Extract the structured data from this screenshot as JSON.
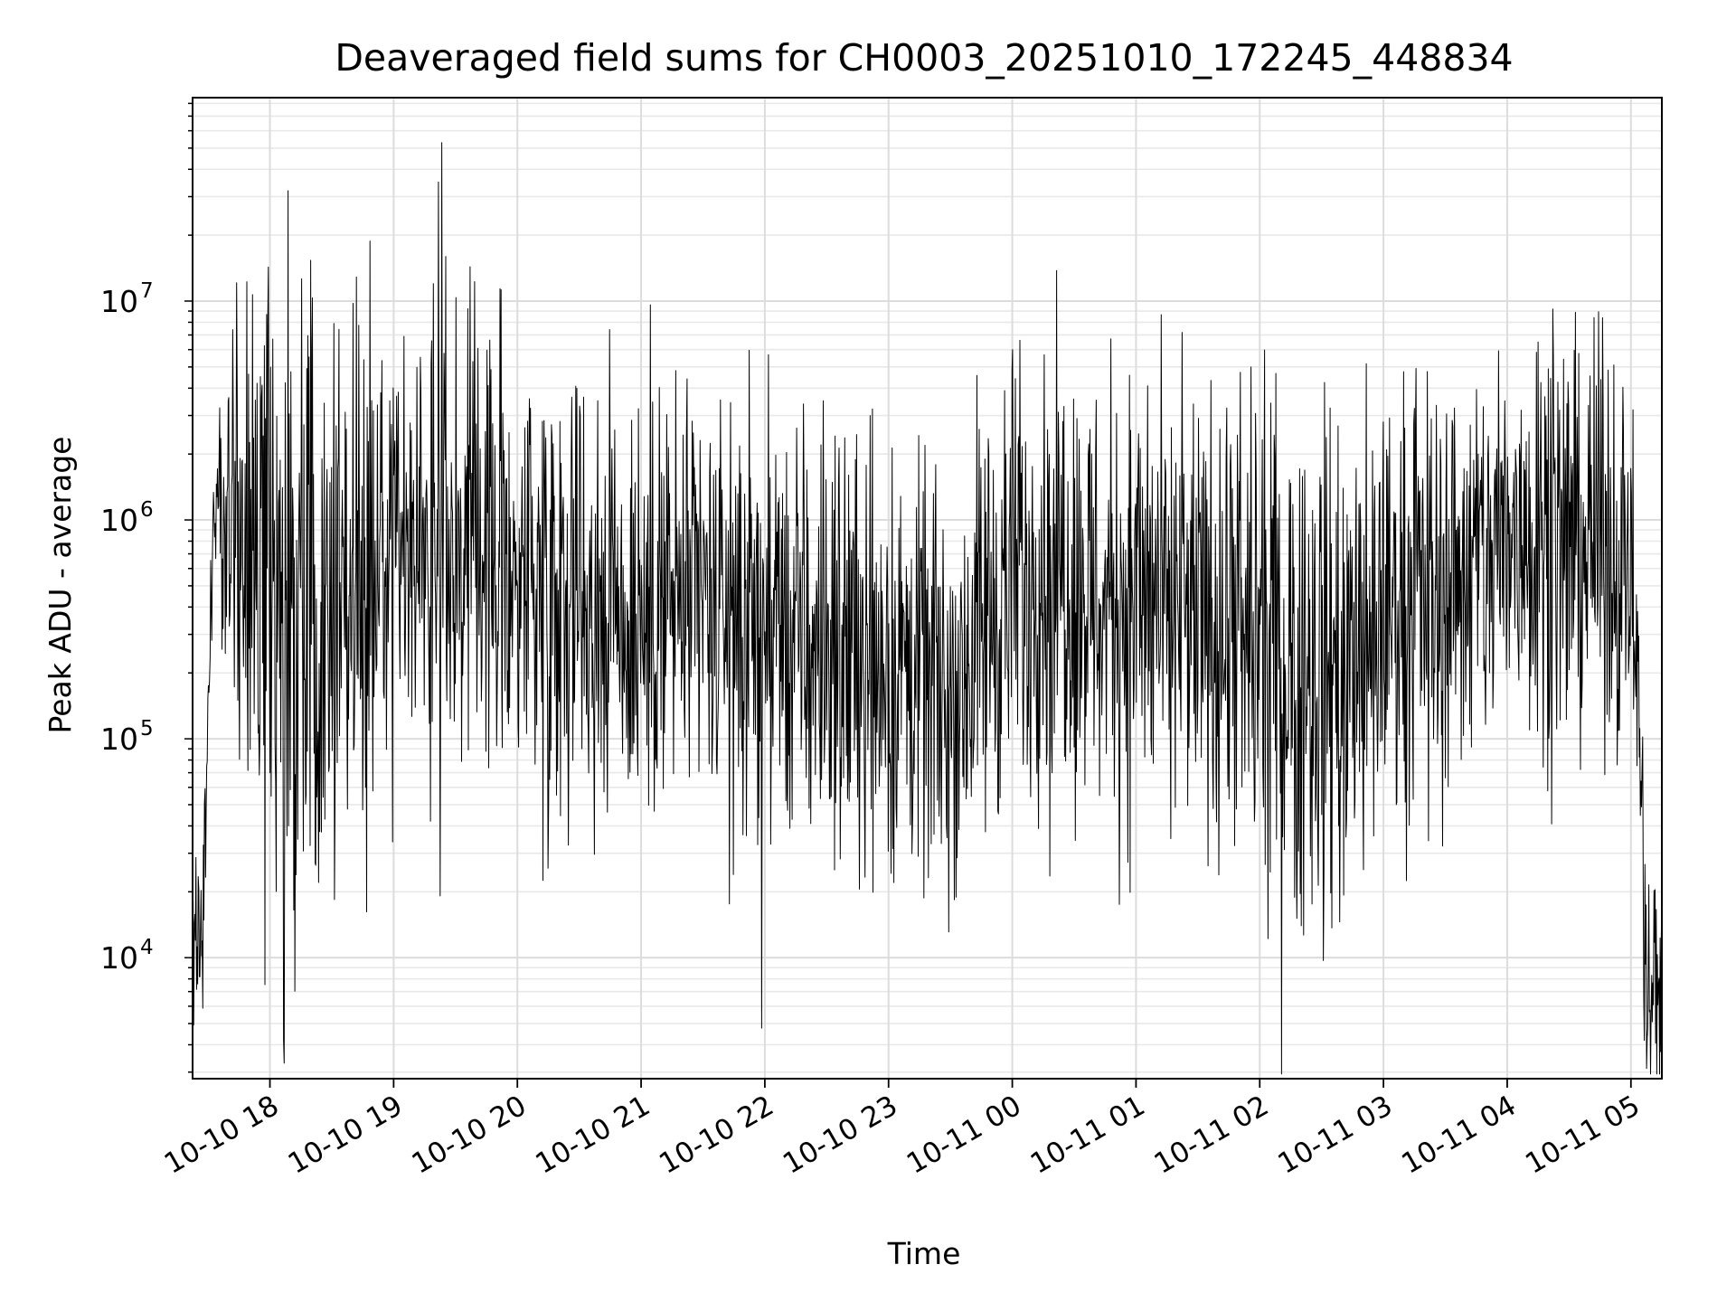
{
  "chart_data": {
    "type": "line",
    "title": "Deaveraged field sums for CH0003_20251010_172245_448834",
    "xlabel": "Time",
    "ylabel": "Peak ADU - average",
    "yscale": "log",
    "ylim": [
      2800,
      85000000
    ],
    "xlim_hours": [
      17.375,
      29.25
    ],
    "grid": true,
    "line_color": "#000000",
    "x_ticks": [
      {
        "hour": 18,
        "label": "10-10 18"
      },
      {
        "hour": 19,
        "label": "10-10 19"
      },
      {
        "hour": 20,
        "label": "10-10 20"
      },
      {
        "hour": 21,
        "label": "10-10 21"
      },
      {
        "hour": 22,
        "label": "10-10 22"
      },
      {
        "hour": 23,
        "label": "10-10 23"
      },
      {
        "hour": 24,
        "label": "10-11 00"
      },
      {
        "hour": 25,
        "label": "10-11 01"
      },
      {
        "hour": 26,
        "label": "10-11 02"
      },
      {
        "hour": 27,
        "label": "10-11 03"
      },
      {
        "hour": 28,
        "label": "10-11 04"
      },
      {
        "hour": 29,
        "label": "10-11 05"
      }
    ],
    "y_ticks": [
      {
        "exp": 4,
        "base": "10",
        "sup": "4"
      },
      {
        "exp": 5,
        "base": "10",
        "sup": "5"
      },
      {
        "exp": 6,
        "base": "10",
        "sup": "6"
      },
      {
        "exp": 7,
        "base": "10",
        "sup": "7"
      }
    ],
    "series": [
      {
        "name": "Peak ADU - average",
        "envelope": {
          "x": [
            17.375,
            17.42,
            17.45,
            17.5,
            17.55,
            17.6,
            17.75,
            18.0,
            18.2,
            18.5,
            18.8,
            19.1,
            19.3,
            19.5,
            20.0,
            20.5,
            21.0,
            21.5,
            22.0,
            22.5,
            22.8,
            23.0,
            23.3,
            23.5,
            23.7,
            24.0,
            24.3,
            24.6,
            25.0,
            25.3,
            25.6,
            26.0,
            26.3,
            26.6,
            26.9,
            27.0,
            27.3,
            27.6,
            28.0,
            28.3,
            28.6,
            28.9,
            29.0,
            29.05,
            29.1,
            29.15,
            29.25
          ],
          "center": [
            12000,
            10500,
            13000,
            120000,
            1300000,
            1300000,
            700000,
            400000,
            380000,
            600000,
            700000,
            800000,
            900000,
            800000,
            650000,
            500000,
            420000,
            400000,
            300000,
            280000,
            270000,
            220000,
            180000,
            180000,
            260000,
            550000,
            650000,
            500000,
            450000,
            380000,
            330000,
            270000,
            220000,
            220000,
            240000,
            400000,
            500000,
            560000,
            800000,
            1000000,
            800000,
            700000,
            750000,
            250000,
            20000,
            6000,
            11000
          ],
          "spread": [
            0.2,
            0.2,
            0.2,
            0.15,
            0.15,
            0.2,
            0.6,
            0.75,
            0.75,
            0.6,
            0.55,
            0.5,
            0.5,
            0.5,
            0.5,
            0.5,
            0.5,
            0.5,
            0.5,
            0.5,
            0.5,
            0.5,
            0.45,
            0.45,
            0.5,
            0.5,
            0.5,
            0.5,
            0.5,
            0.5,
            0.5,
            0.55,
            0.6,
            0.6,
            0.55,
            0.45,
            0.45,
            0.45,
            0.45,
            0.5,
            0.45,
            0.45,
            0.3,
            0.3,
            0.3,
            0.3,
            0.3
          ]
        },
        "spikes": [
          {
            "x": 18.97,
            "y": 3500000
          },
          {
            "x": 19.32,
            "y": 12000000
          },
          {
            "x": 19.36,
            "y": 35000000
          },
          {
            "x": 19.39,
            "y": 53000000
          },
          {
            "x": 19.42,
            "y": 16000000
          },
          {
            "x": 22.85,
            "y": 3000000
          },
          {
            "x": 23.78,
            "y": 1900000
          },
          {
            "x": 24.42,
            "y": 3300000
          },
          {
            "x": 25.68,
            "y": 2600000
          },
          {
            "x": 27.0,
            "y": 2800000
          },
          {
            "x": 28.25,
            "y": 6500000
          },
          {
            "x": 28.37,
            "y": 9200000
          },
          {
            "x": 28.72,
            "y": 4100000
          },
          {
            "x": 25.28,
            "y": 35000
          },
          {
            "x": 26.92,
            "y": 36000
          },
          {
            "x": 19.3,
            "y": 42000
          },
          {
            "x": 18.15,
            "y": 40000
          },
          {
            "x": 29.13,
            "y": 4300
          }
        ]
      }
    ]
  }
}
